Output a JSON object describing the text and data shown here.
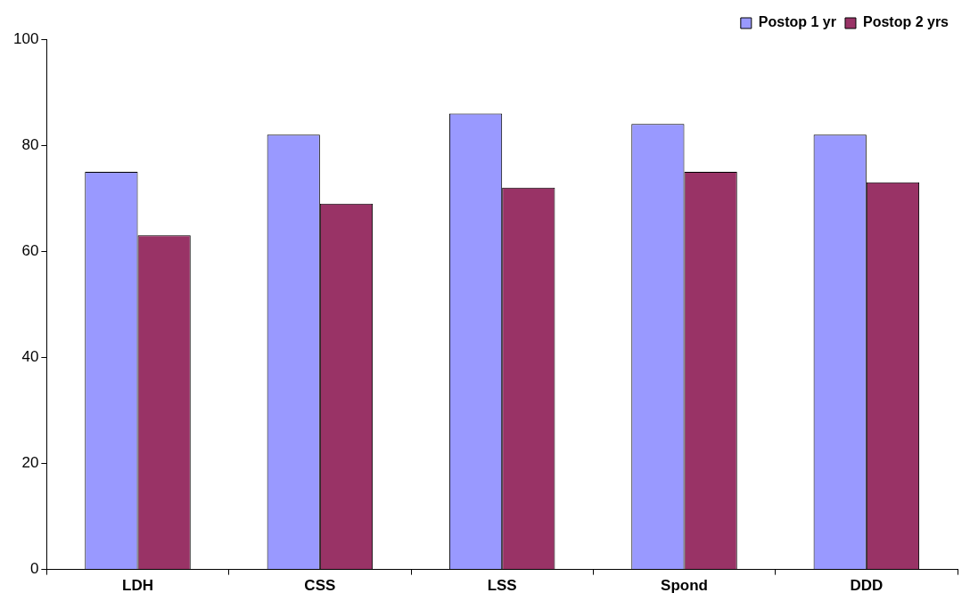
{
  "chart_data": {
    "type": "bar",
    "categories": [
      "LDH",
      "CSS",
      "LSS",
      "Spond",
      "DDD"
    ],
    "series": [
      {
        "name": "Postop 1 yr",
        "color": "#9999ff",
        "values": [
          75,
          82,
          86,
          84,
          82
        ]
      },
      {
        "name": "Postop 2 yrs",
        "color": "#993366",
        "values": [
          63,
          69,
          72,
          75,
          73
        ]
      }
    ],
    "ylim": [
      0,
      100
    ],
    "yticks": [
      0,
      20,
      40,
      60,
      80,
      100
    ],
    "grid": false,
    "legend": "top right"
  }
}
